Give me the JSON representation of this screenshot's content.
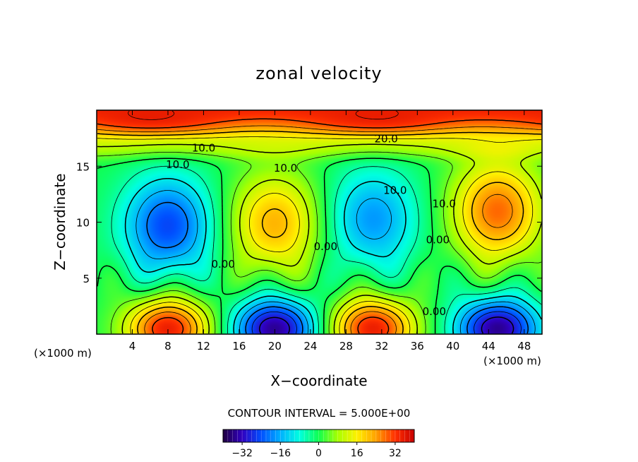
{
  "chart_data": {
    "type": "heatmap",
    "title": "zonal velocity",
    "xlabel": "X−coordinate",
    "ylabel": "Z−coordinate",
    "x_units_left": "(×1000 m)",
    "x_units_right": "(×1000 m)",
    "xlim": [
      0,
      50
    ],
    "ylim": [
      0,
      20
    ],
    "x_ticks": [
      4,
      8,
      12,
      16,
      20,
      24,
      28,
      32,
      36,
      40,
      44,
      48
    ],
    "y_ticks": [
      5,
      10,
      15
    ],
    "contour_interval_text": "CONTOUR INTERVAL = 5.000E+00",
    "contour_interval": 5.0,
    "colorbar": {
      "min": -40,
      "max": 40,
      "ticks": [
        -32,
        -16,
        0,
        16,
        32
      ]
    },
    "contour_labels": [
      {
        "text": "20.0",
        "x": 32.5,
        "z": 17.4
      },
      {
        "text": "10.0",
        "x": 12.0,
        "z": 16.6
      },
      {
        "text": "10.0",
        "x": 9.1,
        "z": 15.1
      },
      {
        "text": "10.0",
        "x": 21.2,
        "z": 14.8
      },
      {
        "text": "10.0",
        "x": 33.5,
        "z": 12.8
      },
      {
        "text": "10.0",
        "x": 39.0,
        "z": 11.6
      },
      {
        "text": "0.00",
        "x": 14.2,
        "z": 6.2
      },
      {
        "text": "0.00",
        "x": 25.7,
        "z": 7.8
      },
      {
        "text": "0.00",
        "x": 38.3,
        "z": 8.4
      },
      {
        "text": "0.00",
        "x": 37.9,
        "z": 2.0
      }
    ],
    "features": [
      {
        "type": "jet_top",
        "x": [
          0,
          50
        ],
        "z": 19.0,
        "value": 35
      },
      {
        "type": "max",
        "x": 8,
        "z": 0.5,
        "value": 35
      },
      {
        "type": "min",
        "x": 20,
        "z": 0.5,
        "value": -35
      },
      {
        "type": "max",
        "x": 31,
        "z": 0.5,
        "value": 35
      },
      {
        "type": "min",
        "x": 45,
        "z": 0.5,
        "value": -35
      },
      {
        "type": "min",
        "x": 8,
        "z": 9.7,
        "value": -25
      },
      {
        "type": "max",
        "x": 20,
        "z": 9.9,
        "value": 22
      },
      {
        "type": "min",
        "x": 31,
        "z": 10.3,
        "value": -18
      },
      {
        "type": "max",
        "x": 45,
        "z": 11.0,
        "value": 28
      }
    ],
    "colors": {
      "scale": [
        "#200040",
        "#3000c0",
        "#0050ff",
        "#00b0ff",
        "#00ffe0",
        "#10ff50",
        "#a8ff00",
        "#fff000",
        "#ffa000",
        "#ff3000",
        "#c80000"
      ]
    }
  }
}
